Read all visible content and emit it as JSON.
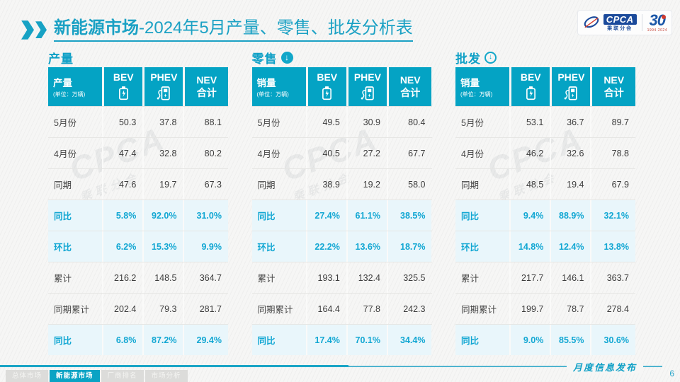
{
  "header": {
    "title_bold": "新能源市场",
    "title_rest": "-2024年5月产量、零售、批发分析表"
  },
  "logos": {
    "cpca_acronym": "CPCA",
    "cpca_name": "乘联分会",
    "anniversary_number": "30",
    "anniversary_years": "1994-2024"
  },
  "colors": {
    "teal": "#04a3c4",
    "highlight_bg": "#e9f6fb",
    "highlight_text": "#12a7d3"
  },
  "watermark": {
    "text": "CPCA",
    "subtext": "乘联分会"
  },
  "tables": [
    {
      "section": "产量",
      "first_col_title": "产量",
      "first_col_unit": "(单位：万辆)",
      "col_bev": "BEV",
      "col_phev": "PHEV",
      "col_nev_line1": "NEV",
      "col_nev_line2": "合计",
      "rows": [
        {
          "label": "5月份",
          "bev": "50.3",
          "phev": "37.8",
          "nev": "88.1",
          "hl": false
        },
        {
          "label": "4月份",
          "bev": "47.4",
          "phev": "32.8",
          "nev": "80.2",
          "hl": false
        },
        {
          "label": "同期",
          "bev": "47.6",
          "phev": "19.7",
          "nev": "67.3",
          "hl": false
        },
        {
          "label": "同比",
          "bev": "5.8%",
          "phev": "92.0%",
          "nev": "31.0%",
          "hl": true
        },
        {
          "label": "环比",
          "bev": "6.2%",
          "phev": "15.3%",
          "nev": "9.9%",
          "hl": true
        },
        {
          "label": "累计",
          "bev": "216.2",
          "phev": "148.5",
          "nev": "364.7",
          "hl": false
        },
        {
          "label": "同期累计",
          "bev": "202.4",
          "phev": "79.3",
          "nev": "281.7",
          "hl": false
        },
        {
          "label": "同比",
          "bev": "6.8%",
          "phev": "87.2%",
          "nev": "29.4%",
          "hl": true
        }
      ]
    },
    {
      "section": "零售",
      "first_col_title": "销量",
      "first_col_unit": "(单位：万辆)",
      "col_bev": "BEV",
      "col_phev": "PHEV",
      "col_nev_line1": "NEV",
      "col_nev_line2": "合计",
      "rows": [
        {
          "label": "5月份",
          "bev": "49.5",
          "phev": "30.9",
          "nev": "80.4",
          "hl": false
        },
        {
          "label": "4月份",
          "bev": "40.5",
          "phev": "27.2",
          "nev": "67.7",
          "hl": false
        },
        {
          "label": "同期",
          "bev": "38.9",
          "phev": "19.2",
          "nev": "58.0",
          "hl": false
        },
        {
          "label": "同比",
          "bev": "27.4%",
          "phev": "61.1%",
          "nev": "38.5%",
          "hl": true
        },
        {
          "label": "环比",
          "bev": "22.2%",
          "phev": "13.6%",
          "nev": "18.7%",
          "hl": true
        },
        {
          "label": "累计",
          "bev": "193.1",
          "phev": "132.4",
          "nev": "325.5",
          "hl": false
        },
        {
          "label": "同期累计",
          "bev": "164.4",
          "phev": "77.8",
          "nev": "242.3",
          "hl": false
        },
        {
          "label": "同比",
          "bev": "17.4%",
          "phev": "70.1%",
          "nev": "34.4%",
          "hl": true
        }
      ]
    },
    {
      "section": "批发",
      "first_col_title": "销量",
      "first_col_unit": "(单位：万辆)",
      "col_bev": "BEV",
      "col_phev": "PHEV",
      "col_nev_line1": "NEV",
      "col_nev_line2": "合计",
      "rows": [
        {
          "label": "5月份",
          "bev": "53.1",
          "phev": "36.7",
          "nev": "89.7",
          "hl": false
        },
        {
          "label": "4月份",
          "bev": "46.2",
          "phev": "32.6",
          "nev": "78.8",
          "hl": false
        },
        {
          "label": "同期",
          "bev": "48.5",
          "phev": "19.4",
          "nev": "67.9",
          "hl": false
        },
        {
          "label": "同比",
          "bev": "9.4%",
          "phev": "88.9%",
          "nev": "32.1%",
          "hl": true
        },
        {
          "label": "环比",
          "bev": "14.8%",
          "phev": "12.4%",
          "nev": "13.8%",
          "hl": true
        },
        {
          "label": "累计",
          "bev": "217.7",
          "phev": "146.1",
          "nev": "363.7",
          "hl": false
        },
        {
          "label": "同期累计",
          "bev": "199.7",
          "phev": "78.7",
          "nev": "278.4",
          "hl": false
        },
        {
          "label": "同比",
          "bev": "9.0%",
          "phev": "85.5%",
          "nev": "30.6%",
          "hl": true
        }
      ]
    }
  ],
  "footer": {
    "tabs": [
      {
        "label": "总体市场",
        "active": false
      },
      {
        "label": "新能源市场",
        "active": true
      },
      {
        "label": "厂商排名",
        "active": false
      },
      {
        "label": "市场分析",
        "active": false
      }
    ],
    "note": "月度信息发布",
    "page_number": "6"
  }
}
